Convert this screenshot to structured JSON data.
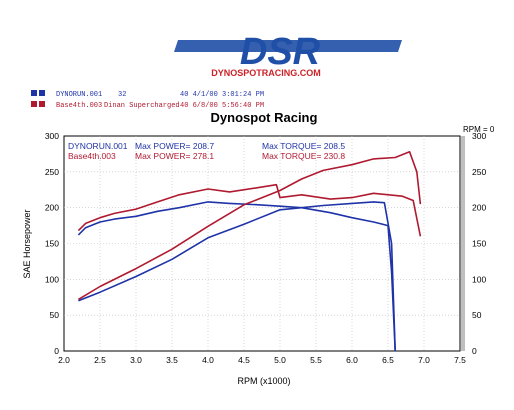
{
  "logo": {
    "text": "DSR",
    "sub": "DYNOSPOTRACING.COM",
    "colors": {
      "blue": "#1f4fa6",
      "red": "#cc2127"
    }
  },
  "runs": [
    {
      "id": "DYNORUN.001",
      "info": "32",
      "extra": "40  4/1/00 3:01:24 PM",
      "color": "#1f33a8"
    },
    {
      "id": "Base4th.003",
      "info": "Dinan Supercharged",
      "extra": "40  6/8/00 5:56:40 PM",
      "color": "#b01a30"
    }
  ],
  "chart_data": {
    "type": "line",
    "title": "Dynospot Racing",
    "xlabel": "RPM (x1000)",
    "ylabel": "SAE Horsepower",
    "xlim": [
      2.0,
      7.5
    ],
    "ylim": [
      0,
      300
    ],
    "x_ticks": [
      "2.0",
      "2.5",
      "3.0",
      "3.5",
      "4.0",
      "4.5",
      "5.0",
      "5.5",
      "6.0",
      "6.5",
      "7.0",
      "7.5"
    ],
    "y_ticks_left": [
      "0",
      "50",
      "100",
      "150",
      "200",
      "250",
      "300"
    ],
    "y_ticks_right": [
      "0",
      "50",
      "100",
      "150",
      "200",
      "250",
      "300"
    ],
    "corner_label": "RPM = 0",
    "grid": true,
    "annotations": [
      {
        "run": "DYNORUN.001",
        "power_text": "Max POWER= 208.7",
        "torque_text": "Max TORQUE= 208.5",
        "color": "#1f33a8"
      },
      {
        "run": "Base4th.003",
        "power_text": "Max POWER= 278.1",
        "torque_text": "Max TORQUE= 230.8",
        "color": "#b01a30"
      }
    ],
    "series": [
      {
        "name": "DYNORUN.001",
        "measure": "torque",
        "color": "#1f33a8",
        "x": [
          2.2,
          2.3,
          2.5,
          2.7,
          3.0,
          3.3,
          3.6,
          4.0,
          4.3,
          4.7,
          5.0,
          5.3,
          5.7,
          6.0,
          6.3,
          6.5,
          6.55,
          6.6
        ],
        "y": [
          162,
          172,
          180,
          184,
          188,
          195,
          200,
          208,
          206,
          204,
          202,
          200,
          193,
          186,
          180,
          175,
          110,
          0
        ]
      },
      {
        "name": "DYNORUN.001",
        "measure": "power",
        "color": "#1f33a8",
        "x": [
          2.2,
          2.5,
          3.0,
          3.5,
          4.0,
          4.5,
          5.0,
          5.3,
          5.6,
          6.0,
          6.3,
          6.45,
          6.55,
          6.6
        ],
        "y": [
          70,
          82,
          104,
          128,
          158,
          177,
          197,
          200,
          203,
          206,
          208,
          207,
          150,
          0
        ]
      },
      {
        "name": "Base4th.003",
        "measure": "torque",
        "color": "#b01a30",
        "x": [
          2.2,
          2.3,
          2.5,
          2.7,
          3.0,
          3.3,
          3.6,
          4.0,
          4.3,
          4.7,
          4.95,
          5.0,
          5.3,
          5.7,
          6.0,
          6.3,
          6.7,
          6.85,
          6.95
        ],
        "y": [
          168,
          178,
          186,
          192,
          198,
          208,
          218,
          226,
          222,
          228,
          232,
          214,
          218,
          212,
          214,
          220,
          216,
          210,
          160
        ]
      },
      {
        "name": "Base4th.003",
        "measure": "power",
        "color": "#b01a30",
        "x": [
          2.2,
          2.5,
          3.0,
          3.5,
          4.0,
          4.5,
          5.0,
          5.3,
          5.6,
          6.0,
          6.3,
          6.6,
          6.8,
          6.9,
          6.95
        ],
        "y": [
          72,
          90,
          115,
          142,
          174,
          204,
          224,
          240,
          252,
          260,
          268,
          270,
          278,
          250,
          205
        ]
      }
    ]
  }
}
